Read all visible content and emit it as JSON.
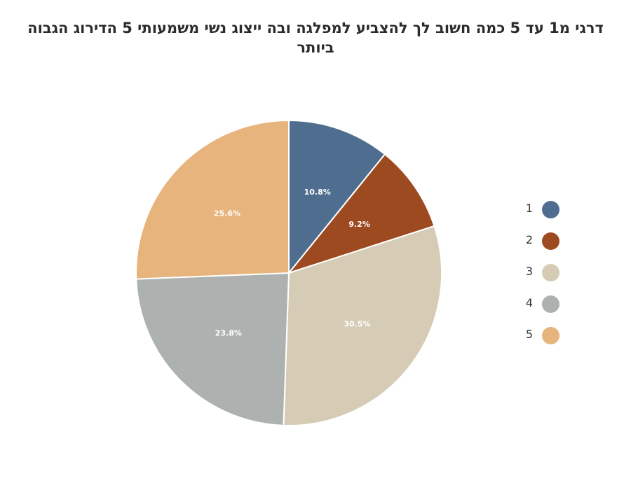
{
  "chart_data": {
    "type": "pie",
    "title": "דרגי מ1 עד 5 כמה חשוב לך להצביע למפלגה ובה ייצוג נשי משמעותי 5 הדירוג הגבוה ביותר",
    "categories": [
      "1",
      "2",
      "3",
      "4",
      "5"
    ],
    "values": [
      10.8,
      9.2,
      30.5,
      23.8,
      25.6
    ],
    "labels": [
      "10.8%",
      "9.2%",
      "30.5%",
      "23.8%",
      "25.6%"
    ],
    "colors": [
      "#4f6d8f",
      "#9e4a20",
      "#d6cbb5",
      "#adb2b1",
      "#e8b47e"
    ],
    "legend_position": "right",
    "direction": "clockwise from top"
  }
}
